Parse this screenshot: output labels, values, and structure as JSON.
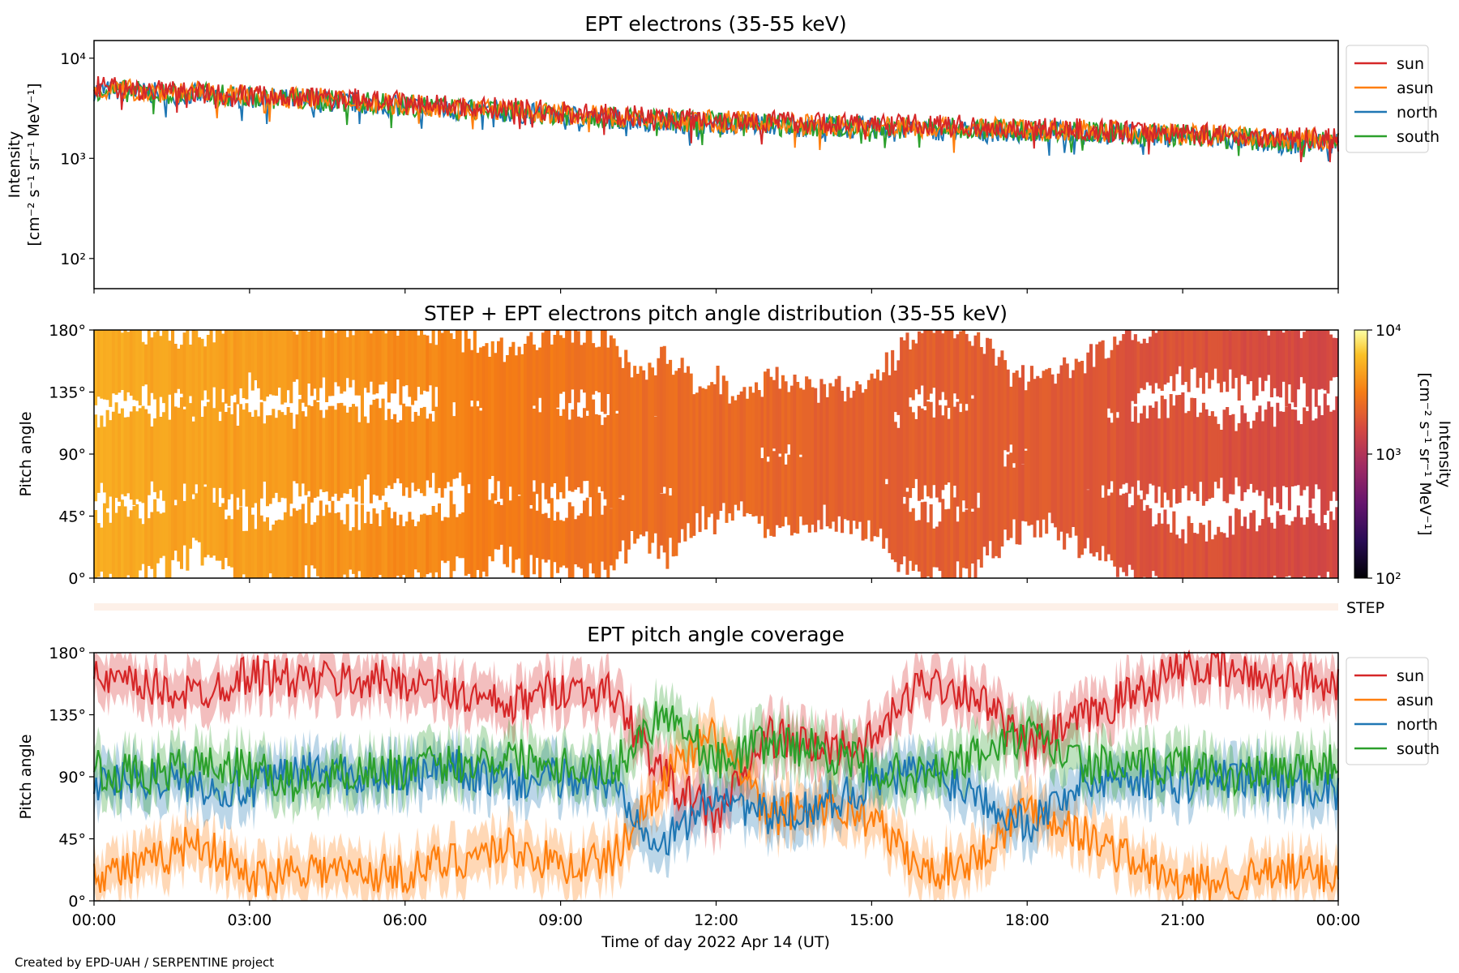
{
  "footer": {
    "credit": "Created by EPD-UAH / SERPENTINE project"
  },
  "colors": {
    "sun": "#d62728",
    "asun": "#ff7f0e",
    "north": "#1f77b4",
    "south": "#2ca02c"
  },
  "chart_data": [
    {
      "type": "line",
      "title": "EPT electrons (35-55 keV)",
      "ylabel": [
        "Intensity",
        "[cm⁻² s⁻¹ sr⁻¹ MeV⁻¹]"
      ],
      "yscale": "log",
      "ylim": [
        50,
        15000
      ],
      "yticks": [
        {
          "v": 100,
          "label": "10²"
        },
        {
          "v": 1000,
          "label": "10³"
        },
        {
          "v": 10000,
          "label": "10⁴"
        }
      ],
      "xlim_hours": [
        0,
        24
      ],
      "legend": {
        "position": "outside-right",
        "entries": [
          "sun",
          "asun",
          "north",
          "south"
        ]
      },
      "series": [
        {
          "name": "sun",
          "color": "#d62728",
          "x": [
            0,
            1,
            2,
            3,
            4,
            5,
            6,
            7,
            8,
            9,
            10,
            11,
            12,
            13,
            14,
            15,
            16,
            17,
            18,
            19,
            20,
            21,
            22,
            23,
            24
          ],
          "y": [
            5200,
            4800,
            4600,
            4300,
            4100,
            3900,
            3600,
            3300,
            3150,
            2900,
            2700,
            2550,
            2450,
            2350,
            2250,
            2200,
            2150,
            2100,
            2000,
            1950,
            1850,
            1800,
            1700,
            1600,
            1550
          ]
        },
        {
          "name": "asun",
          "color": "#ff7f0e",
          "x": [
            0,
            1,
            2,
            3,
            4,
            5,
            6,
            7,
            8,
            9,
            10,
            11,
            12,
            13,
            14,
            15,
            16,
            17,
            18,
            19,
            20,
            21,
            22,
            23,
            24
          ],
          "y": [
            5000,
            4700,
            4500,
            4200,
            4000,
            3800,
            3500,
            3200,
            3050,
            2800,
            2600,
            2450,
            2350,
            2250,
            2150,
            2100,
            2050,
            2000,
            1950,
            1900,
            1800,
            1750,
            1650,
            1550,
            1500
          ]
        },
        {
          "name": "north",
          "color": "#1f77b4",
          "x": [
            0,
            1,
            2,
            3,
            4,
            5,
            6,
            7,
            8,
            9,
            10,
            11,
            12,
            13,
            14,
            15,
            16,
            17,
            18,
            19,
            20,
            21,
            22,
            23,
            24
          ],
          "y": [
            4800,
            4500,
            4300,
            4000,
            3800,
            3600,
            3300,
            3000,
            2900,
            2700,
            2500,
            2300,
            2250,
            2150,
            2050,
            2000,
            1950,
            1900,
            1850,
            1800,
            1700,
            1650,
            1550,
            1400,
            1450
          ]
        },
        {
          "name": "south",
          "color": "#2ca02c",
          "x": [
            0,
            1,
            2,
            3,
            4,
            5,
            6,
            7,
            8,
            9,
            10,
            11,
            12,
            13,
            14,
            15,
            16,
            17,
            18,
            19,
            20,
            21,
            22,
            23,
            24
          ],
          "y": [
            4900,
            4550,
            4400,
            4100,
            3850,
            3650,
            3400,
            3100,
            2950,
            2750,
            2550,
            2400,
            2300,
            2200,
            2100,
            2050,
            2000,
            1950,
            1900,
            1850,
            1750,
            1700,
            1600,
            1450,
            1500
          ]
        }
      ]
    },
    {
      "type": "heatmap",
      "title": "STEP + EPT electrons pitch angle distribution (35-55 keV)",
      "ylabel": "Pitch angle",
      "ylim": [
        0,
        180
      ],
      "yticks": [
        "0°",
        "45°",
        "90°",
        "135°",
        "180°"
      ],
      "colorbar": {
        "label": [
          "Intensity",
          "[cm⁻² s⁻¹ sr⁻¹ MeV⁻¹]"
        ],
        "scale": "log",
        "range": [
          100,
          10000
        ],
        "ticks": [
          "10²",
          "10³",
          "10⁴"
        ]
      },
      "note": "coverage follows the four telescope pitch-angle traces; intensity decreases from ~5e3 to ~1.5e3"
    },
    {
      "type": "bar",
      "label": "STEP",
      "color": "#fdf0e8"
    },
    {
      "type": "line",
      "title": "EPT pitch angle coverage",
      "ylabel": "Pitch angle",
      "xlabel": "Time of day 2022 Apr 14 (UT)",
      "ylim": [
        0,
        180
      ],
      "yticks": [
        "0°",
        "45°",
        "90°",
        "135°",
        "180°"
      ],
      "xticks": [
        "00:00",
        "03:00",
        "06:00",
        "09:00",
        "12:00",
        "15:00",
        "18:00",
        "21:00",
        "00:00"
      ],
      "shaded_band": true,
      "legend": {
        "position": "outside-right",
        "entries": [
          "sun",
          "asun",
          "north",
          "south"
        ]
      },
      "series": [
        {
          "name": "sun",
          "color": "#d62728",
          "x": [
            0,
            1,
            2,
            3,
            4,
            5,
            6,
            7,
            8,
            9,
            10,
            11,
            12,
            13,
            14,
            15,
            16,
            17,
            18,
            19,
            20,
            21,
            22,
            23,
            24
          ],
          "y": [
            160,
            155,
            150,
            165,
            160,
            160,
            160,
            150,
            140,
            155,
            150,
            90,
            60,
            120,
            110,
            115,
            160,
            150,
            110,
            130,
            150,
            170,
            165,
            160,
            160
          ]
        },
        {
          "name": "asun",
          "color": "#ff7f0e",
          "x": [
            0,
            1,
            2,
            3,
            4,
            5,
            6,
            7,
            8,
            9,
            10,
            11,
            12,
            13,
            14,
            15,
            16,
            17,
            18,
            19,
            20,
            21,
            22,
            23,
            24
          ],
          "y": [
            20,
            25,
            45,
            15,
            25,
            20,
            20,
            30,
            40,
            25,
            30,
            90,
            120,
            60,
            70,
            60,
            20,
            30,
            70,
            50,
            30,
            10,
            15,
            20,
            20
          ]
        },
        {
          "name": "north",
          "color": "#1f77b4",
          "x": [
            0,
            1,
            2,
            3,
            4,
            5,
            6,
            7,
            8,
            9,
            10,
            11,
            12,
            13,
            14,
            15,
            16,
            17,
            18,
            19,
            20,
            21,
            22,
            23,
            24
          ],
          "y": [
            85,
            90,
            85,
            80,
            95,
            90,
            90,
            95,
            85,
            90,
            85,
            40,
            80,
            60,
            70,
            85,
            95,
            80,
            55,
            85,
            90,
            85,
            90,
            85,
            80
          ]
        },
        {
          "name": "south",
          "color": "#2ca02c",
          "x": [
            0,
            1,
            2,
            3,
            4,
            5,
            6,
            7,
            8,
            9,
            10,
            11,
            12,
            13,
            14,
            15,
            16,
            17,
            18,
            19,
            20,
            21,
            22,
            23,
            24
          ],
          "y": [
            95,
            90,
            100,
            95,
            85,
            95,
            95,
            100,
            105,
            100,
            95,
            140,
            100,
            115,
            110,
            95,
            90,
            105,
            120,
            100,
            95,
            100,
            90,
            95,
            100
          ]
        }
      ]
    }
  ]
}
